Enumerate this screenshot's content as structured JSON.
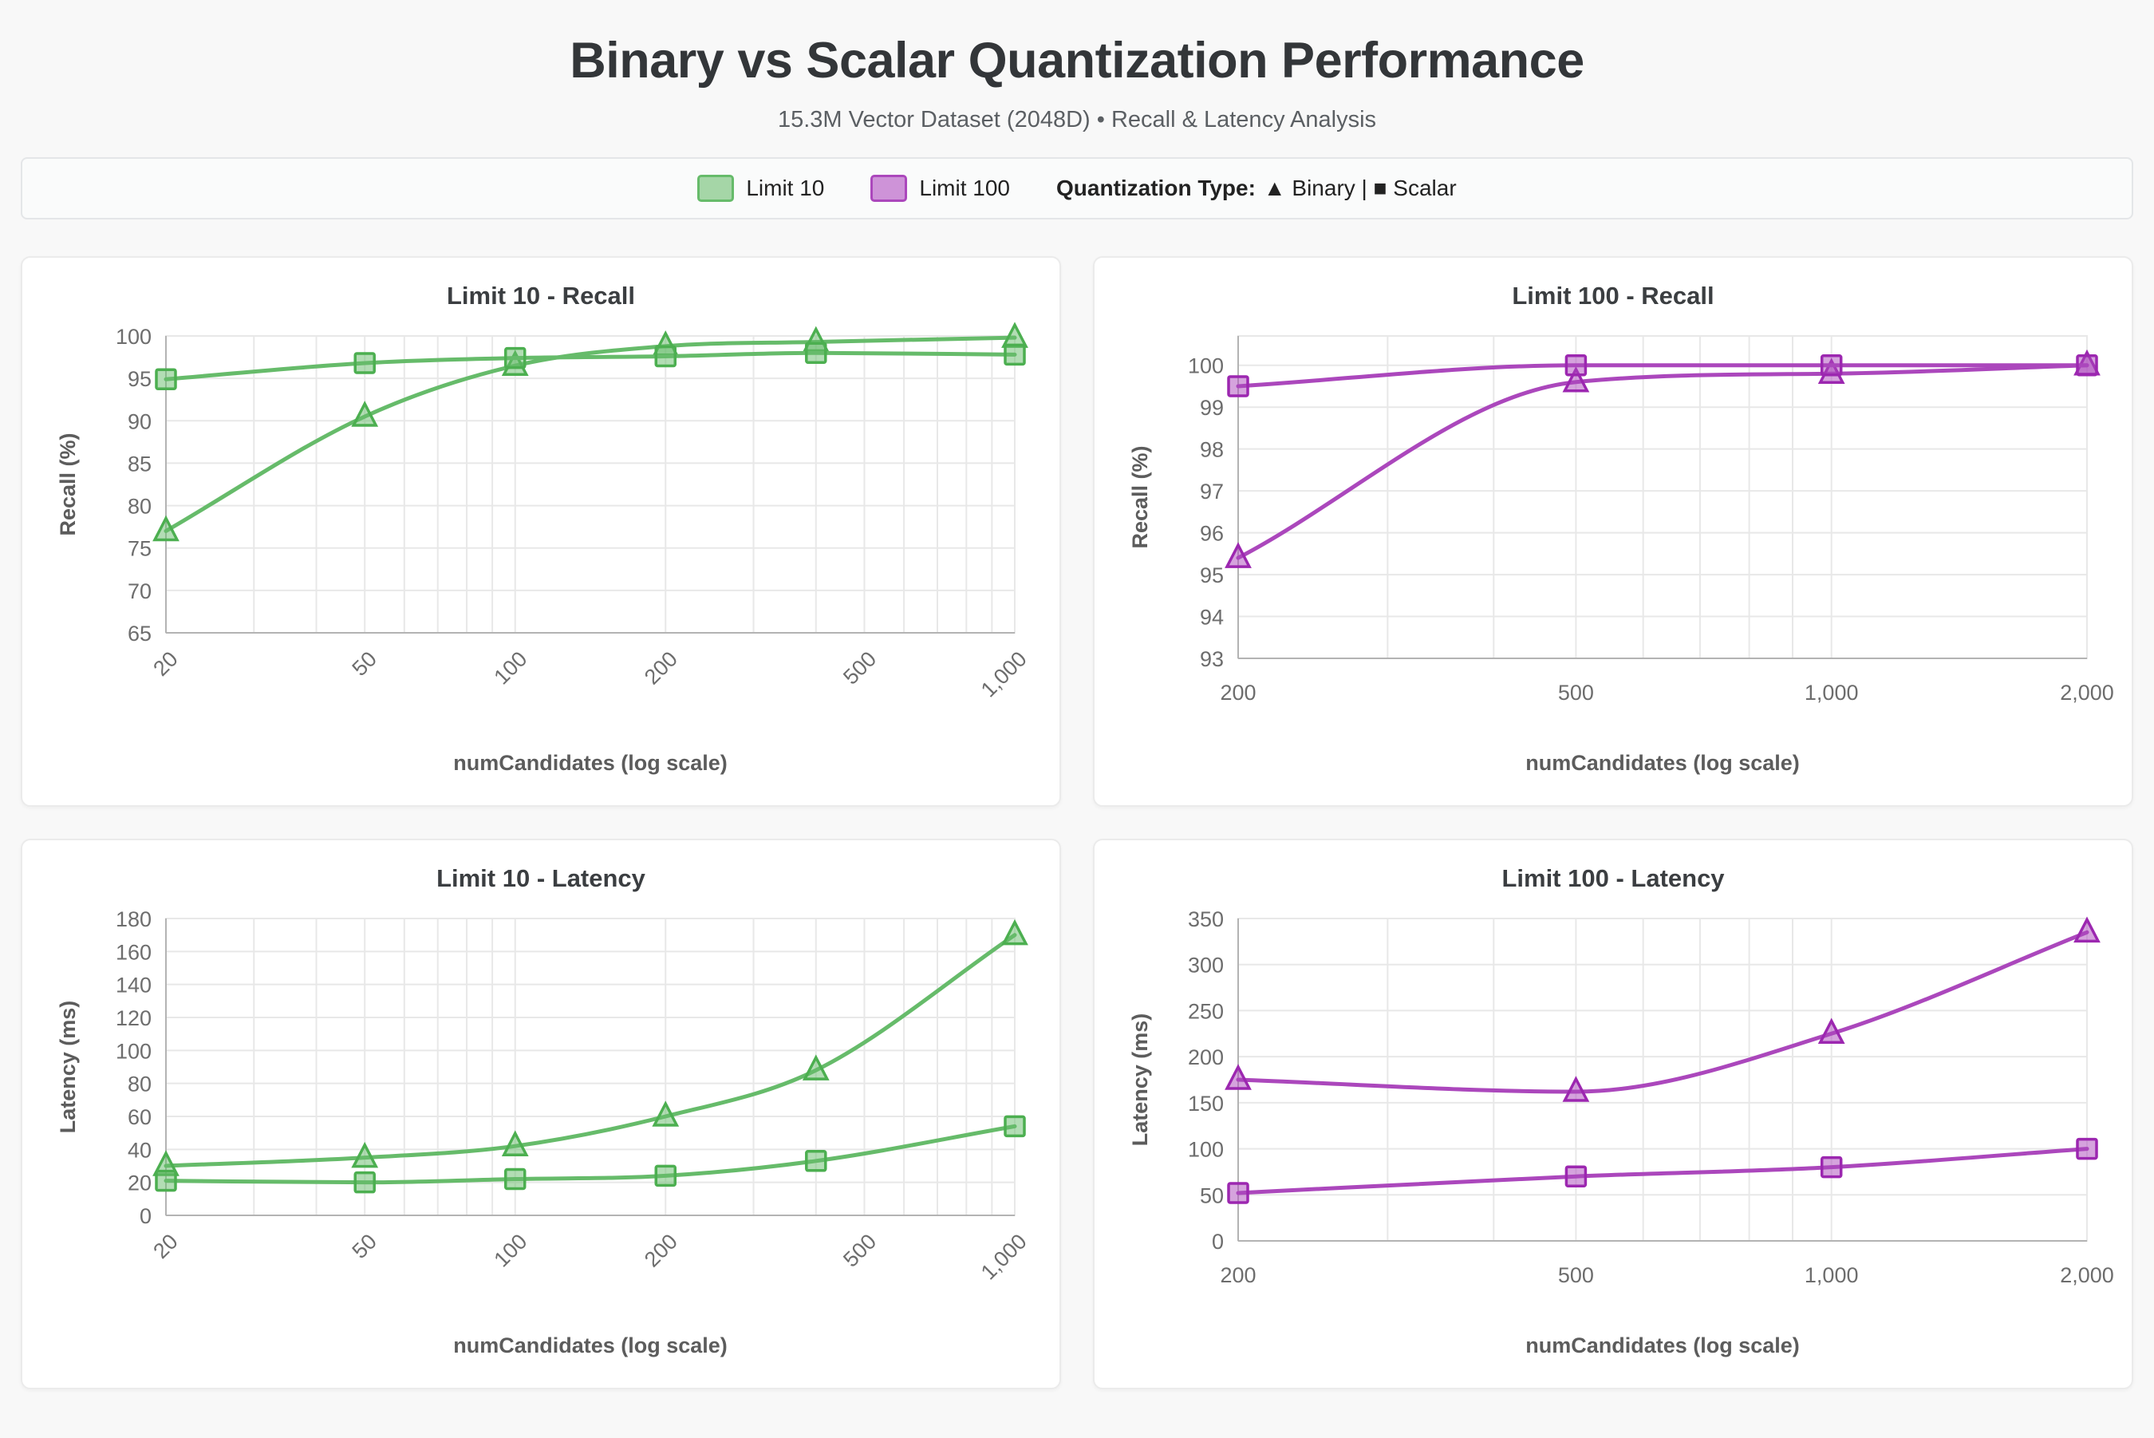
{
  "header": {
    "title": "Binary vs Scalar Quantization Performance",
    "subtitle": "15.3M Vector Dataset (2048D) • Recall & Latency Analysis"
  },
  "legend": {
    "items": [
      {
        "label": "Limit 10",
        "fill": "#a5d6a7",
        "border": "#66bb6a"
      },
      {
        "label": "Limit 100",
        "fill": "#ce93d8",
        "border": "#ab47bc"
      }
    ],
    "quantization_label": "Quantization Type:",
    "quantization_value": "▲ Binary | ■ Scalar"
  },
  "colors": {
    "page_bg": "#f8f8f8",
    "card_bg": "#ffffff",
    "grid_line": "#e8e8e8",
    "axis_line": "#b3b3b3",
    "tick_text": "#6d6d6d",
    "axis_title_text": "#5c5c5c",
    "green_line": "#66bb6a",
    "green_marker_stroke": "#4caf50",
    "green_marker_fill": "rgba(102,187,106,0.5)",
    "purple_line": "#ab47bc",
    "purple_marker_stroke": "#9c27b0",
    "purple_marker_fill": "rgba(171,71,188,0.5)"
  },
  "chart_data": [
    {
      "type": "line",
      "title": "Limit 10 - Recall",
      "xlabel": "numCandidates (log scale)",
      "ylabel": "Recall (%)",
      "x_scale": "log",
      "xlim": [
        20,
        1000
      ],
      "ylim": [
        65,
        100
      ],
      "x": [
        20,
        50,
        100,
        200,
        400,
        1000
      ],
      "x_ticks": [
        {
          "v": 20,
          "label": "20"
        },
        {
          "v": 50,
          "label": "50"
        },
        {
          "v": 100,
          "label": "100"
        },
        {
          "v": 200,
          "label": "200"
        },
        {
          "v": 500,
          "label": "500"
        },
        {
          "v": 1000,
          "label": "1,000"
        }
      ],
      "rotate_x_labels": true,
      "y_ticks": [
        65,
        70,
        75,
        80,
        85,
        90,
        95,
        100
      ],
      "series": [
        {
          "name": "Binary",
          "quantization": "binary",
          "marker": "triangle",
          "color_key": "green",
          "values": [
            77,
            90.5,
            96.5,
            98.8,
            99.3,
            99.8
          ]
        },
        {
          "name": "Scalar",
          "quantization": "scalar",
          "marker": "square",
          "color_key": "green",
          "values": [
            94.9,
            96.8,
            97.4,
            97.6,
            98.0,
            97.8
          ]
        }
      ]
    },
    {
      "type": "line",
      "title": "Limit 100 - Recall",
      "xlabel": "numCandidates (log scale)",
      "ylabel": "Recall (%)",
      "x_scale": "log",
      "xlim": [
        200,
        2000
      ],
      "ylim": [
        93,
        100.7
      ],
      "x": [
        200,
        500,
        1000,
        2000
      ],
      "x_ticks": [
        {
          "v": 200,
          "label": "200"
        },
        {
          "v": 500,
          "label": "500"
        },
        {
          "v": 1000,
          "label": "1,000"
        },
        {
          "v": 2000,
          "label": "2,000"
        }
      ],
      "rotate_x_labels": false,
      "y_ticks": [
        93,
        94,
        95,
        96,
        97,
        98,
        99,
        100
      ],
      "series": [
        {
          "name": "Binary",
          "quantization": "binary",
          "marker": "triangle",
          "color_key": "purple",
          "values": [
            95.4,
            99.6,
            99.8,
            100
          ]
        },
        {
          "name": "Scalar",
          "quantization": "scalar",
          "marker": "square",
          "color_key": "purple",
          "values": [
            99.5,
            100,
            100,
            100
          ]
        }
      ]
    },
    {
      "type": "line",
      "title": "Limit 10 - Latency",
      "xlabel": "numCandidates (log scale)",
      "ylabel": "Latency (ms)",
      "x_scale": "log",
      "xlim": [
        20,
        1000
      ],
      "ylim": [
        0,
        180
      ],
      "x": [
        20,
        50,
        100,
        200,
        400,
        1000
      ],
      "x_ticks": [
        {
          "v": 20,
          "label": "20"
        },
        {
          "v": 50,
          "label": "50"
        },
        {
          "v": 100,
          "label": "100"
        },
        {
          "v": 200,
          "label": "200"
        },
        {
          "v": 500,
          "label": "500"
        },
        {
          "v": 1000,
          "label": "1,000"
        }
      ],
      "rotate_x_labels": true,
      "y_ticks": [
        0,
        20,
        40,
        60,
        80,
        100,
        120,
        140,
        160,
        180
      ],
      "series": [
        {
          "name": "Binary",
          "quantization": "binary",
          "marker": "triangle",
          "color_key": "green",
          "values": [
            30,
            35,
            42,
            60,
            88,
            170
          ]
        },
        {
          "name": "Scalar",
          "quantization": "scalar",
          "marker": "square",
          "color_key": "green",
          "values": [
            21,
            20,
            22,
            24,
            33,
            54
          ]
        }
      ]
    },
    {
      "type": "line",
      "title": "Limit 100 - Latency",
      "xlabel": "numCandidates (log scale)",
      "ylabel": "Latency (ms)",
      "x_scale": "log",
      "xlim": [
        200,
        2000
      ],
      "ylim": [
        0,
        350
      ],
      "x": [
        200,
        500,
        1000,
        2000
      ],
      "x_ticks": [
        {
          "v": 200,
          "label": "200"
        },
        {
          "v": 500,
          "label": "500"
        },
        {
          "v": 1000,
          "label": "1,000"
        },
        {
          "v": 2000,
          "label": "2,000"
        }
      ],
      "rotate_x_labels": false,
      "y_ticks": [
        0,
        50,
        100,
        150,
        200,
        250,
        300,
        350
      ],
      "series": [
        {
          "name": "Binary",
          "quantization": "binary",
          "marker": "triangle",
          "color_key": "purple",
          "values": [
            175,
            162,
            225,
            335
          ]
        },
        {
          "name": "Scalar",
          "quantization": "scalar",
          "marker": "square",
          "color_key": "purple",
          "values": [
            52,
            70,
            80,
            100
          ]
        }
      ]
    }
  ]
}
